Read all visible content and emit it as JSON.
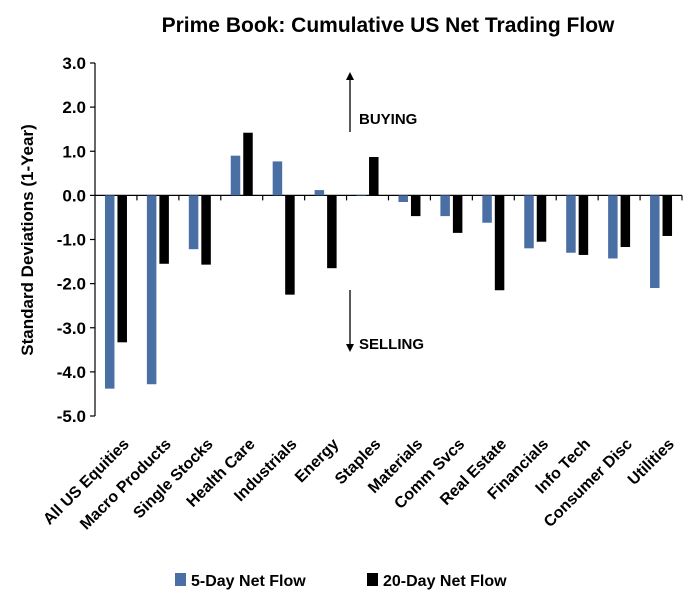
{
  "chart_data": {
    "type": "bar",
    "title": "Prime Book: Cumulative US Net Trading Flow",
    "ylabel": "Standard Deviations (1-Year)",
    "xlabel": "",
    "ylim": [
      -5.0,
      3.0
    ],
    "yticks": [
      "3.0",
      "2.0",
      "1.0",
      "0.0",
      "-1.0",
      "-2.0",
      "-3.0",
      "-4.0",
      "-5.0"
    ],
    "grid": false,
    "legend_position": "bottom",
    "categories": [
      "All US Equities",
      "Macro Products",
      "Single Stocks",
      "Health Care",
      "Industrials",
      "Energy",
      "Staples",
      "Materials",
      "Comm Svcs",
      "Real Estate",
      "Financials",
      "Info Tech",
      "Consumer Disc",
      "Utilities"
    ],
    "series": [
      {
        "name": "5-Day Net Flow",
        "color": "#4a6fa5",
        "values": [
          -4.38,
          -4.28,
          -1.22,
          0.9,
          0.77,
          0.12,
          0.0,
          -0.15,
          -0.47,
          -0.62,
          -1.2,
          -1.3,
          -1.43,
          -2.1
        ]
      },
      {
        "name": "20-Day Net Flow",
        "color": "#000000",
        "values": [
          -3.33,
          -1.55,
          -1.57,
          1.42,
          -2.25,
          -1.65,
          0.87,
          -0.47,
          -0.85,
          -2.15,
          -1.05,
          -1.35,
          -1.17,
          -0.92
        ]
      }
    ],
    "annotations": [
      "BUYING",
      "SELLING"
    ]
  }
}
